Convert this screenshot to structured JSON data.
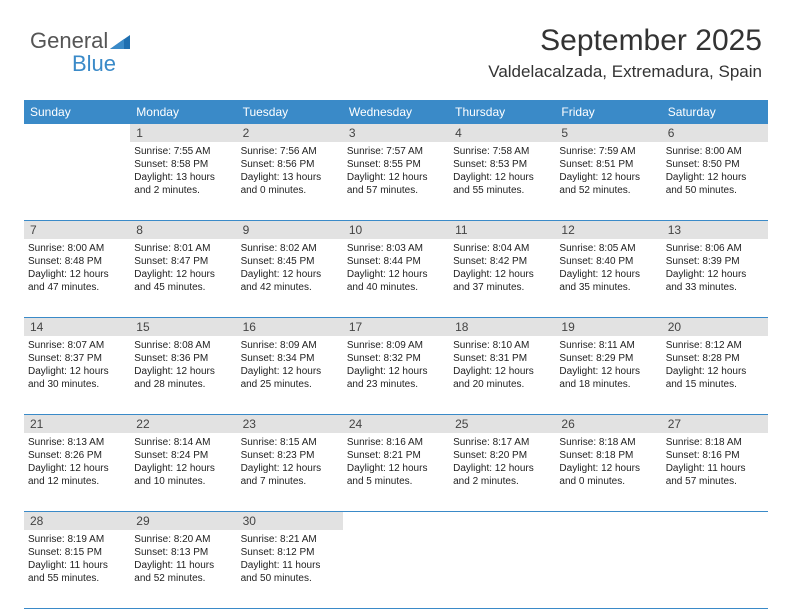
{
  "logo": {
    "text1": "General",
    "text2": "Blue"
  },
  "title": "September 2025",
  "location": "Valdelacalzada, Extremadura, Spain",
  "colors": {
    "header_bg": "#3a8ac8",
    "header_text": "#ffffff",
    "daynum_bg": "#e2e2e2",
    "text": "#333333",
    "line": "#3a8ac8"
  },
  "day_headers": [
    "Sunday",
    "Monday",
    "Tuesday",
    "Wednesday",
    "Thursday",
    "Friday",
    "Saturday"
  ],
  "weeks": [
    {
      "nums": [
        "",
        "1",
        "2",
        "3",
        "4",
        "5",
        "6"
      ],
      "cells": [
        null,
        {
          "sunrise": "Sunrise: 7:55 AM",
          "sunset": "Sunset: 8:58 PM",
          "daylight": "Daylight: 13 hours and 2 minutes."
        },
        {
          "sunrise": "Sunrise: 7:56 AM",
          "sunset": "Sunset: 8:56 PM",
          "daylight": "Daylight: 13 hours and 0 minutes."
        },
        {
          "sunrise": "Sunrise: 7:57 AM",
          "sunset": "Sunset: 8:55 PM",
          "daylight": "Daylight: 12 hours and 57 minutes."
        },
        {
          "sunrise": "Sunrise: 7:58 AM",
          "sunset": "Sunset: 8:53 PM",
          "daylight": "Daylight: 12 hours and 55 minutes."
        },
        {
          "sunrise": "Sunrise: 7:59 AM",
          "sunset": "Sunset: 8:51 PM",
          "daylight": "Daylight: 12 hours and 52 minutes."
        },
        {
          "sunrise": "Sunrise: 8:00 AM",
          "sunset": "Sunset: 8:50 PM",
          "daylight": "Daylight: 12 hours and 50 minutes."
        }
      ]
    },
    {
      "nums": [
        "7",
        "8",
        "9",
        "10",
        "11",
        "12",
        "13"
      ],
      "cells": [
        {
          "sunrise": "Sunrise: 8:00 AM",
          "sunset": "Sunset: 8:48 PM",
          "daylight": "Daylight: 12 hours and 47 minutes."
        },
        {
          "sunrise": "Sunrise: 8:01 AM",
          "sunset": "Sunset: 8:47 PM",
          "daylight": "Daylight: 12 hours and 45 minutes."
        },
        {
          "sunrise": "Sunrise: 8:02 AM",
          "sunset": "Sunset: 8:45 PM",
          "daylight": "Daylight: 12 hours and 42 minutes."
        },
        {
          "sunrise": "Sunrise: 8:03 AM",
          "sunset": "Sunset: 8:44 PM",
          "daylight": "Daylight: 12 hours and 40 minutes."
        },
        {
          "sunrise": "Sunrise: 8:04 AM",
          "sunset": "Sunset: 8:42 PM",
          "daylight": "Daylight: 12 hours and 37 minutes."
        },
        {
          "sunrise": "Sunrise: 8:05 AM",
          "sunset": "Sunset: 8:40 PM",
          "daylight": "Daylight: 12 hours and 35 minutes."
        },
        {
          "sunrise": "Sunrise: 8:06 AM",
          "sunset": "Sunset: 8:39 PM",
          "daylight": "Daylight: 12 hours and 33 minutes."
        }
      ]
    },
    {
      "nums": [
        "14",
        "15",
        "16",
        "17",
        "18",
        "19",
        "20"
      ],
      "cells": [
        {
          "sunrise": "Sunrise: 8:07 AM",
          "sunset": "Sunset: 8:37 PM",
          "daylight": "Daylight: 12 hours and 30 minutes."
        },
        {
          "sunrise": "Sunrise: 8:08 AM",
          "sunset": "Sunset: 8:36 PM",
          "daylight": "Daylight: 12 hours and 28 minutes."
        },
        {
          "sunrise": "Sunrise: 8:09 AM",
          "sunset": "Sunset: 8:34 PM",
          "daylight": "Daylight: 12 hours and 25 minutes."
        },
        {
          "sunrise": "Sunrise: 8:09 AM",
          "sunset": "Sunset: 8:32 PM",
          "daylight": "Daylight: 12 hours and 23 minutes."
        },
        {
          "sunrise": "Sunrise: 8:10 AM",
          "sunset": "Sunset: 8:31 PM",
          "daylight": "Daylight: 12 hours and 20 minutes."
        },
        {
          "sunrise": "Sunrise: 8:11 AM",
          "sunset": "Sunset: 8:29 PM",
          "daylight": "Daylight: 12 hours and 18 minutes."
        },
        {
          "sunrise": "Sunrise: 8:12 AM",
          "sunset": "Sunset: 8:28 PM",
          "daylight": "Daylight: 12 hours and 15 minutes."
        }
      ]
    },
    {
      "nums": [
        "21",
        "22",
        "23",
        "24",
        "25",
        "26",
        "27"
      ],
      "cells": [
        {
          "sunrise": "Sunrise: 8:13 AM",
          "sunset": "Sunset: 8:26 PM",
          "daylight": "Daylight: 12 hours and 12 minutes."
        },
        {
          "sunrise": "Sunrise: 8:14 AM",
          "sunset": "Sunset: 8:24 PM",
          "daylight": "Daylight: 12 hours and 10 minutes."
        },
        {
          "sunrise": "Sunrise: 8:15 AM",
          "sunset": "Sunset: 8:23 PM",
          "daylight": "Daylight: 12 hours and 7 minutes."
        },
        {
          "sunrise": "Sunrise: 8:16 AM",
          "sunset": "Sunset: 8:21 PM",
          "daylight": "Daylight: 12 hours and 5 minutes."
        },
        {
          "sunrise": "Sunrise: 8:17 AM",
          "sunset": "Sunset: 8:20 PM",
          "daylight": "Daylight: 12 hours and 2 minutes."
        },
        {
          "sunrise": "Sunrise: 8:18 AM",
          "sunset": "Sunset: 8:18 PM",
          "daylight": "Daylight: 12 hours and 0 minutes."
        },
        {
          "sunrise": "Sunrise: 8:18 AM",
          "sunset": "Sunset: 8:16 PM",
          "daylight": "Daylight: 11 hours and 57 minutes."
        }
      ]
    },
    {
      "nums": [
        "28",
        "29",
        "30",
        "",
        "",
        "",
        ""
      ],
      "cells": [
        {
          "sunrise": "Sunrise: 8:19 AM",
          "sunset": "Sunset: 8:15 PM",
          "daylight": "Daylight: 11 hours and 55 minutes."
        },
        {
          "sunrise": "Sunrise: 8:20 AM",
          "sunset": "Sunset: 8:13 PM",
          "daylight": "Daylight: 11 hours and 52 minutes."
        },
        {
          "sunrise": "Sunrise: 8:21 AM",
          "sunset": "Sunset: 8:12 PM",
          "daylight": "Daylight: 11 hours and 50 minutes."
        },
        null,
        null,
        null,
        null
      ]
    }
  ]
}
